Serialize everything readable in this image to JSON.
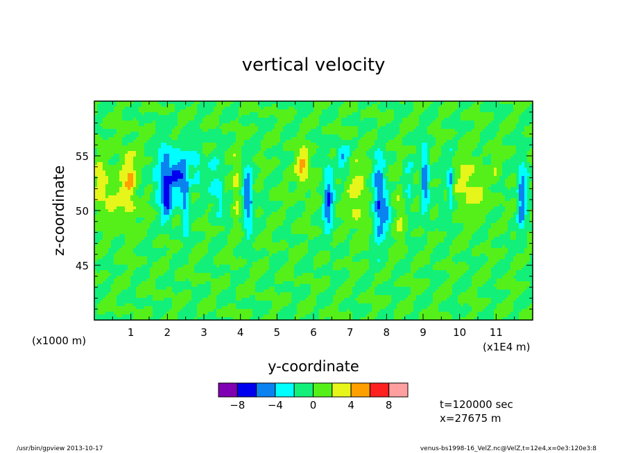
{
  "chart_data": {
    "type": "heatmap",
    "title": "vertical velocity",
    "xlabel": "y-coordinate",
    "ylabel": "z-coordinate",
    "x_unit_left": "(x1000 m)",
    "x_unit_right": "(x1E4 m)",
    "xlim": [
      0.0,
      1.2
    ],
    "ylim": [
      40.0,
      60.0
    ],
    "x_ticks": [
      {
        "value": 0.1,
        "label": "1"
      },
      {
        "value": 0.2,
        "label": "2"
      },
      {
        "value": 0.3,
        "label": "3"
      },
      {
        "value": 0.4,
        "label": "4"
      },
      {
        "value": 0.5,
        "label": "5"
      },
      {
        "value": 0.6,
        "label": "6"
      },
      {
        "value": 0.7,
        "label": "7"
      },
      {
        "value": 0.8,
        "label": "8"
      },
      {
        "value": 0.9,
        "label": "9"
      },
      {
        "value": 1.0,
        "label": "10"
      },
      {
        "value": 1.1,
        "label": "11"
      }
    ],
    "y_ticks": [
      {
        "value": 45,
        "label": "45"
      },
      {
        "value": 50,
        "label": "50"
      },
      {
        "value": 55,
        "label": "55"
      }
    ],
    "colorbar": {
      "levels": [
        -10,
        -8,
        -6,
        -4,
        -2,
        0,
        2,
        4,
        6,
        8,
        10
      ],
      "colors": [
        "#7f00b2",
        "#0000ef",
        "#0a82f0",
        "#00ffff",
        "#12f07a",
        "#55f01a",
        "#e6f51a",
        "#ff9f00",
        "#ff2020",
        "#ff9f9f"
      ],
      "labels": [
        {
          "value": -8,
          "label": "−8"
        },
        {
          "value": -4,
          "label": "−4"
        },
        {
          "value": 0,
          "label": "0"
        },
        {
          "value": 4,
          "label": "4"
        },
        {
          "value": 8,
          "label": "8"
        }
      ]
    },
    "features": [
      {
        "y": 0.02,
        "z": 52.0,
        "w": 0.03,
        "h": 6.0,
        "v": 3.0
      },
      {
        "y": 0.045,
        "z": 50.5,
        "w": 0.012,
        "h": 2.5,
        "v": 1.3
      },
      {
        "y": 0.09,
        "z": 52.0,
        "w": 0.03,
        "h": 8.0,
        "v": 3.2
      },
      {
        "y": 0.1,
        "z": 53.0,
        "w": 0.01,
        "h": 3.0,
        "v": 2.0
      },
      {
        "y": 0.165,
        "z": 52.5,
        "w": 0.01,
        "h": 3.0,
        "v": -1.8
      },
      {
        "y": 0.195,
        "z": 53.0,
        "w": 0.025,
        "h": 7.0,
        "v": -6.2
      },
      {
        "y": 0.2,
        "z": 50.5,
        "w": 0.012,
        "h": 2.5,
        "v": -3.5
      },
      {
        "y": 0.22,
        "z": 53.5,
        "w": 0.012,
        "h": 3.0,
        "v": -2.5
      },
      {
        "y": 0.24,
        "z": 53.0,
        "w": 0.02,
        "h": 5.5,
        "v": -5.0
      },
      {
        "y": 0.25,
        "z": 50.0,
        "w": 0.01,
        "h": 7.0,
        "v": -3.5
      },
      {
        "y": 0.28,
        "z": 54.0,
        "w": 0.02,
        "h": 4.0,
        "v": -3.2
      },
      {
        "y": 0.33,
        "z": 52.5,
        "w": 0.02,
        "h": 6.0,
        "v": -2.4
      },
      {
        "y": 0.345,
        "z": 51.0,
        "w": 0.01,
        "h": 3.5,
        "v": -2.4
      },
      {
        "y": 0.39,
        "z": 52.0,
        "w": 0.012,
        "h": 7.0,
        "v": 2.8
      },
      {
        "y": 0.42,
        "z": 51.0,
        "w": 0.015,
        "h": 7.0,
        "v": -5.8
      },
      {
        "y": 0.57,
        "z": 54.0,
        "w": 0.018,
        "h": 4.0,
        "v": 4.5
      },
      {
        "y": 0.6,
        "z": 52.5,
        "w": 0.012,
        "h": 3.0,
        "v": 1.2
      },
      {
        "y": 0.64,
        "z": 51.0,
        "w": 0.015,
        "h": 7.0,
        "v": -5.8
      },
      {
        "y": 0.68,
        "z": 55.0,
        "w": 0.02,
        "h": 2.5,
        "v": -4.0
      },
      {
        "y": 0.72,
        "z": 51.5,
        "w": 0.03,
        "h": 8.0,
        "v": 2.6
      },
      {
        "y": 0.78,
        "z": 51.0,
        "w": 0.018,
        "h": 9.0,
        "v": -6.0
      },
      {
        "y": 0.8,
        "z": 50.0,
        "w": 0.012,
        "h": 3.5,
        "v": -3.5
      },
      {
        "y": 0.835,
        "z": 50.0,
        "w": 0.015,
        "h": 6.0,
        "v": 2.2
      },
      {
        "y": 0.86,
        "z": 52.0,
        "w": 0.015,
        "h": 6.0,
        "v": -2.2
      },
      {
        "y": 0.905,
        "z": 53.0,
        "w": 0.012,
        "h": 6.0,
        "v": -6.0
      },
      {
        "y": 0.95,
        "z": 50.0,
        "w": 0.01,
        "h": 3.0,
        "v": -2.4
      },
      {
        "y": 0.975,
        "z": 52.5,
        "w": 0.01,
        "h": 5.0,
        "v": -5.0
      },
      {
        "y": 1.02,
        "z": 52.5,
        "w": 0.04,
        "h": 6.0,
        "v": 2.8
      },
      {
        "y": 1.06,
        "z": 51.0,
        "w": 0.03,
        "h": 3.0,
        "v": 1.4
      },
      {
        "y": 1.1,
        "z": 54.0,
        "w": 0.012,
        "h": 4.0,
        "v": 1.4
      },
      {
        "y": 1.17,
        "z": 51.0,
        "w": 0.012,
        "h": 7.0,
        "v": -5.2
      },
      {
        "y": 1.18,
        "z": 53.5,
        "w": 0.015,
        "h": 3.0,
        "v": -1.8
      }
    ],
    "background_noise": 0.9,
    "grid": false
  },
  "info": {
    "time_text": "t=120000 sec",
    "x_text": "x=27675 m"
  },
  "footer": {
    "left": "/usr/bin/gpview   2013-10-17",
    "right": "venus-bs1998-16_VelZ.nc@VelZ,t=12e4,x=0e3:120e3:8"
  }
}
